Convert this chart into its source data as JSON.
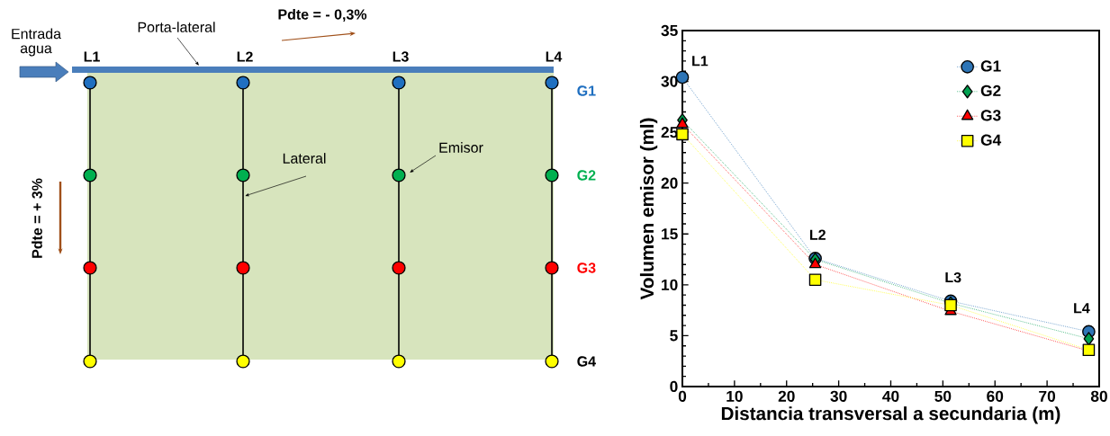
{
  "chart_data": [
    {
      "type": "other",
      "annotations": [
        "Entrada agua",
        "Porta-lateral",
        "Pdte = - 0,3%",
        "L1",
        "L2",
        "L3",
        "L4",
        "G1",
        "G2",
        "G3",
        "G4",
        "Lateral",
        "Emisor",
        "Pdte = + 3%"
      ]
    },
    {
      "type": "line",
      "xlabel": "Distancia transversal a secundaria (m)",
      "ylabel": "Volumen emisor (ml)",
      "x": [
        0,
        25.5,
        51.5,
        78
      ],
      "series": [
        {
          "name": "G1",
          "color": "#2e75b6",
          "marker": "circle",
          "values": [
            30.4,
            12.6,
            8.4,
            5.4
          ]
        },
        {
          "name": "G2",
          "color": "#00a050",
          "marker": "diamond",
          "values": [
            26.2,
            12.5,
            8.2,
            4.7
          ]
        },
        {
          "name": "G3",
          "color": "#ff0000",
          "marker": "triangle",
          "values": [
            25.8,
            12.0,
            7.4,
            3.5
          ]
        },
        {
          "name": "G4",
          "color": "#ffff00",
          "marker": "square",
          "values": [
            24.8,
            10.5,
            8.0,
            3.6
          ]
        }
      ],
      "annotations": [
        {
          "text": "L1",
          "x": 0,
          "y": 30.4
        },
        {
          "text": "L2",
          "x": 25.5,
          "y": 12.6
        },
        {
          "text": "L3",
          "x": 51.5,
          "y": 8.4
        },
        {
          "text": "L4",
          "x": 78,
          "y": 5.4
        }
      ],
      "xlim": [
        0,
        80
      ],
      "ylim": [
        0,
        35
      ],
      "xticks": [
        0,
        10,
        20,
        30,
        40,
        50,
        60,
        70,
        80
      ],
      "yticks": [
        0,
        5,
        10,
        15,
        20,
        25,
        30,
        35
      ],
      "grid": false,
      "legend": "top right",
      "line_style": "dotted"
    }
  ]
}
